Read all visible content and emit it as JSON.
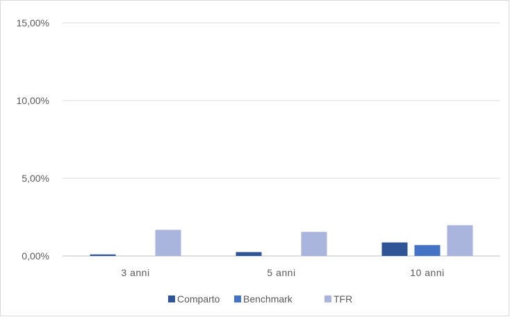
{
  "chart_data": {
    "type": "bar",
    "title": "",
    "xlabel": "",
    "ylabel": "",
    "categories": [
      "3 anni",
      "5 anni",
      "10 anni"
    ],
    "series": [
      {
        "name": "Comparto",
        "color": "#2f5597",
        "values": [
          0.1,
          0.25,
          0.87
        ]
      },
      {
        "name": "Benchmark",
        "color": "#4472c4",
        "values": [
          0.0,
          0.0,
          0.7
        ]
      },
      {
        "name": "TFR",
        "color": "#a9b5dc",
        "values": [
          1.68,
          1.55,
          1.98
        ]
      }
    ],
    "ylim": [
      0,
      15
    ],
    "yticks": [
      0,
      5,
      10,
      15
    ],
    "ytick_labels": [
      "0,00%",
      "5,00%",
      "10,00%",
      "15,00%"
    ],
    "grid": true,
    "legend_position": "bottom"
  }
}
